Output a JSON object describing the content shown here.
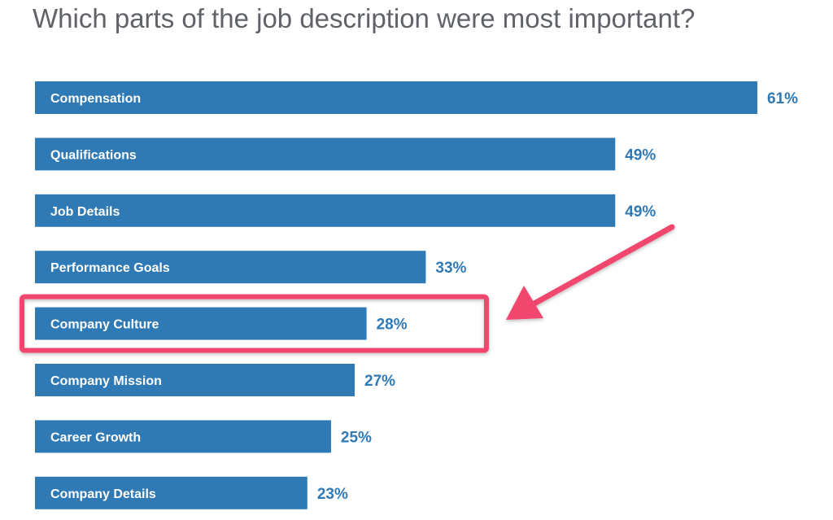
{
  "colors": {
    "bar": "#2f7ab5",
    "value_text": "#2f7ab5",
    "highlight": "#f1466e",
    "title_text": "#5f6368"
  },
  "chart_data": {
    "type": "bar",
    "orientation": "horizontal",
    "title": "Which parts of the job description were most important?",
    "categories": [
      "Compensation",
      "Qualifications",
      "Job Details",
      "Performance Goals",
      "Company Culture",
      "Company Mission",
      "Career Growth",
      "Company Details"
    ],
    "values": [
      61,
      49,
      49,
      33,
      28,
      27,
      25,
      23
    ],
    "value_labels": [
      "61%",
      "49%",
      "49%",
      "33%",
      "28%",
      "27%",
      "25%",
      "23%"
    ],
    "unit": "%",
    "xlim": [
      0,
      61
    ],
    "grid": false,
    "legend": "none",
    "highlight": {
      "category": "Company Culture",
      "shape": "rectangle outline",
      "arrow": "pointing left at highlighted bar"
    }
  }
}
